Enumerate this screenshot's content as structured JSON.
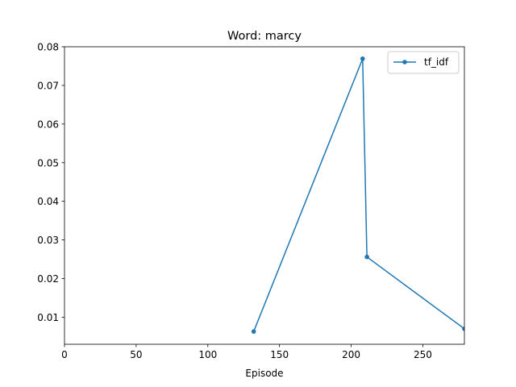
{
  "chart_data": {
    "type": "line",
    "title": "Word: marcy",
    "xlabel": "Episode",
    "ylabel": "",
    "xlim": [
      0,
      279
    ],
    "ylim": [
      0.003,
      0.08
    ],
    "xticks": [
      0,
      50,
      100,
      150,
      200,
      250
    ],
    "yticks": [
      0.01,
      0.02,
      0.03,
      0.04,
      0.05,
      0.06,
      0.07,
      0.08
    ],
    "ytick_labels": [
      "0.01",
      "0.02",
      "0.03",
      "0.04",
      "0.05",
      "0.06",
      "0.07",
      "0.08"
    ],
    "grid": false,
    "legend": "top-right",
    "series": [
      {
        "name": "tf_idf",
        "color": "#1f77b4",
        "marker": "circle",
        "x": [
          132,
          208,
          211,
          279
        ],
        "y": [
          0.0063,
          0.0769,
          0.0256,
          0.007
        ]
      }
    ]
  }
}
